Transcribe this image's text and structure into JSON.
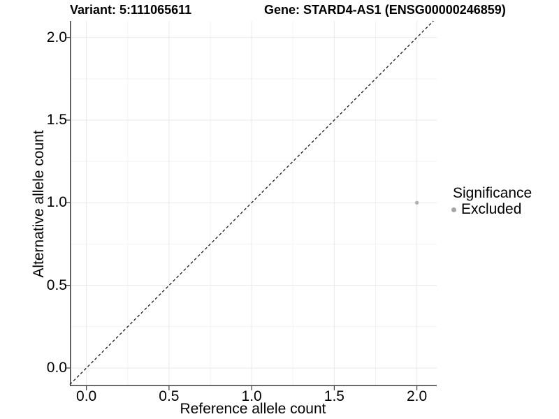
{
  "chart_data": {
    "type": "scatter",
    "title_left": "Variant: 5:111065611",
    "title_right": "Gene: STARD4-AS1 (ENSG00000246859)",
    "xlabel": "Reference allele count",
    "ylabel": "Alternative allele count",
    "xlim": [
      -0.1,
      2.12
    ],
    "ylim": [
      -0.11,
      2.1
    ],
    "x_ticks": [
      {
        "value": 0.0,
        "label": "0.0"
      },
      {
        "value": 0.5,
        "label": "0.5"
      },
      {
        "value": 1.0,
        "label": "1.0"
      },
      {
        "value": 1.5,
        "label": "1.5"
      },
      {
        "value": 2.0,
        "label": "2.0"
      }
    ],
    "y_ticks": [
      {
        "value": 0.0,
        "label": "0.0"
      },
      {
        "value": 0.5,
        "label": "0.5"
      },
      {
        "value": 1.0,
        "label": "1.0"
      },
      {
        "value": 1.5,
        "label": "1.5"
      },
      {
        "value": 2.0,
        "label": "2.0"
      }
    ],
    "x_minor_gridlines": [
      0.25,
      0.75,
      1.25,
      1.75
    ],
    "y_minor_gridlines": [
      0.25,
      0.75,
      1.25,
      1.75
    ],
    "grid": true,
    "identity_line": {
      "slope": 1,
      "intercept": 0,
      "style": "dashed",
      "color": "#1a1a1a"
    },
    "points": [
      {
        "x": 2.0,
        "y": 1.0,
        "significance": "Excluded",
        "color": "#b2b2b2",
        "radius_px": 2.7
      }
    ],
    "legend": {
      "title": "Significance",
      "position": "right",
      "items": [
        {
          "label": "Excluded",
          "color": "#a6a6a6",
          "shape": "circle"
        }
      ]
    },
    "colors": {
      "background": "#ffffff",
      "grid_major": "#e9e9e9",
      "grid_minor": "#f3f3f3",
      "axis_line": "#3c3c3c",
      "tick": "#3c3c3c",
      "text": "#000000"
    }
  }
}
